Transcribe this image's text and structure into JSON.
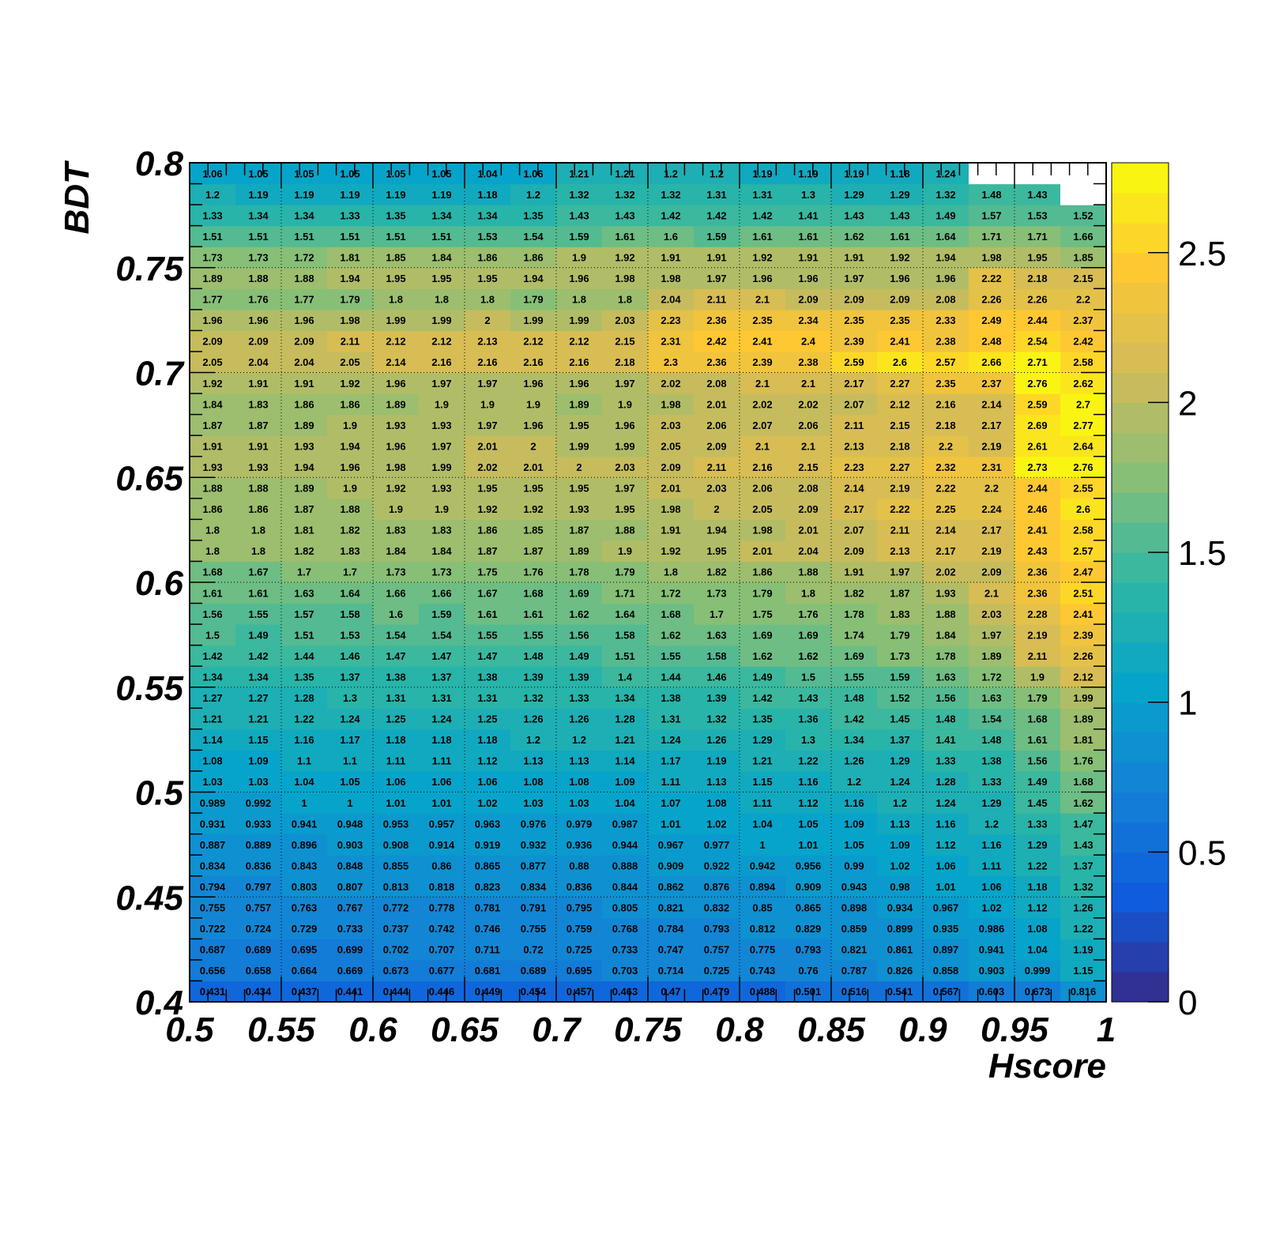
{
  "chart_data": {
    "type": "heatmap",
    "xlabel": "Hscore",
    "ylabel": "BDT",
    "xlim": [
      0.5,
      1.0
    ],
    "ylim": [
      0.4,
      0.8
    ],
    "zlim": [
      0,
      2.8
    ],
    "x_bins": 20,
    "y_bins": 40,
    "x_ticks": [
      "0.5",
      "0.55",
      "0.6",
      "0.65",
      "0.7",
      "0.75",
      "0.8",
      "0.85",
      "0.9",
      "0.95",
      "1"
    ],
    "y_ticks": [
      "0.4",
      "0.45",
      "0.5",
      "0.55",
      "0.6",
      "0.65",
      "0.7",
      "0.75",
      "0.8"
    ],
    "z_ticks": [
      "0",
      "0.5",
      "1",
      "1.5",
      "2",
      "2.5"
    ],
    "grid": true,
    "colorbar": "right",
    "palette": [
      "#352a87",
      "#0f5cdd",
      "#1481d6",
      "#06a4ca",
      "#2eb7a4",
      "#87bf77",
      "#d1bb59",
      "#fec832",
      "#f9fb0e"
    ],
    "empty_color": "#ffffff",
    "rows": [
      [
        "0.431",
        "0.434",
        "0.437",
        "0.441",
        "0.444",
        "0.446",
        "0.449",
        "0.454",
        "0.457",
        "0.463",
        "0.47",
        "0.479",
        "0.488",
        "0.501",
        "0.516",
        "0.541",
        "0.567",
        "0.603",
        "0.673",
        "0.816"
      ],
      [
        "0.656",
        "0.658",
        "0.664",
        "0.669",
        "0.673",
        "0.677",
        "0.681",
        "0.689",
        "0.695",
        "0.703",
        "0.714",
        "0.725",
        "0.743",
        "0.76",
        "0.787",
        "0.826",
        "0.858",
        "0.903",
        "0.999",
        "1.15"
      ],
      [
        "0.687",
        "0.689",
        "0.695",
        "0.699",
        "0.702",
        "0.707",
        "0.711",
        "0.72",
        "0.725",
        "0.733",
        "0.747",
        "0.757",
        "0.775",
        "0.793",
        "0.821",
        "0.861",
        "0.897",
        "0.941",
        "1.04",
        "1.19"
      ],
      [
        "0.722",
        "0.724",
        "0.729",
        "0.733",
        "0.737",
        "0.742",
        "0.746",
        "0.755",
        "0.759",
        "0.768",
        "0.784",
        "0.793",
        "0.812",
        "0.829",
        "0.859",
        "0.899",
        "0.935",
        "0.986",
        "1.08",
        "1.22"
      ],
      [
        "0.755",
        "0.757",
        "0.763",
        "0.767",
        "0.772",
        "0.778",
        "0.781",
        "0.791",
        "0.795",
        "0.805",
        "0.821",
        "0.832",
        "0.85",
        "0.865",
        "0.898",
        "0.934",
        "0.967",
        "1.02",
        "1.12",
        "1.26"
      ],
      [
        "0.794",
        "0.797",
        "0.803",
        "0.807",
        "0.813",
        "0.818",
        "0.823",
        "0.834",
        "0.836",
        "0.844",
        "0.862",
        "0.876",
        "0.894",
        "0.909",
        "0.943",
        "0.98",
        "1.01",
        "1.06",
        "1.18",
        "1.32"
      ],
      [
        "0.834",
        "0.836",
        "0.843",
        "0.848",
        "0.855",
        "0.86",
        "0.865",
        "0.877",
        "0.88",
        "0.888",
        "0.909",
        "0.922",
        "0.942",
        "0.956",
        "0.99",
        "1.02",
        "1.06",
        "1.11",
        "1.22",
        "1.37"
      ],
      [
        "0.887",
        "0.889",
        "0.896",
        "0.903",
        "0.908",
        "0.914",
        "0.919",
        "0.932",
        "0.936",
        "0.944",
        "0.967",
        "0.977",
        "1",
        "1.01",
        "1.05",
        "1.09",
        "1.12",
        "1.16",
        "1.29",
        "1.43"
      ],
      [
        "0.931",
        "0.933",
        "0.941",
        "0.948",
        "0.953",
        "0.957",
        "0.963",
        "0.976",
        "0.979",
        "0.987",
        "1.01",
        "1.02",
        "1.04",
        "1.05",
        "1.09",
        "1.13",
        "1.16",
        "1.2",
        "1.33",
        "1.47"
      ],
      [
        "0.989",
        "0.992",
        "1",
        "1",
        "1.01",
        "1.01",
        "1.02",
        "1.03",
        "1.03",
        "1.04",
        "1.07",
        "1.08",
        "1.11",
        "1.12",
        "1.16",
        "1.2",
        "1.24",
        "1.29",
        "1.45",
        "1.62"
      ],
      [
        "1.03",
        "1.03",
        "1.04",
        "1.05",
        "1.06",
        "1.06",
        "1.06",
        "1.08",
        "1.08",
        "1.09",
        "1.11",
        "1.13",
        "1.15",
        "1.16",
        "1.2",
        "1.24",
        "1.28",
        "1.33",
        "1.49",
        "1.68"
      ],
      [
        "1.08",
        "1.09",
        "1.1",
        "1.1",
        "1.11",
        "1.11",
        "1.12",
        "1.13",
        "1.13",
        "1.14",
        "1.17",
        "1.19",
        "1.21",
        "1.22",
        "1.26",
        "1.29",
        "1.33",
        "1.38",
        "1.56",
        "1.76"
      ],
      [
        "1.14",
        "1.15",
        "1.16",
        "1.17",
        "1.18",
        "1.18",
        "1.18",
        "1.2",
        "1.2",
        "1.21",
        "1.24",
        "1.26",
        "1.29",
        "1.3",
        "1.34",
        "1.37",
        "1.41",
        "1.48",
        "1.61",
        "1.81"
      ],
      [
        "1.21",
        "1.21",
        "1.22",
        "1.24",
        "1.25",
        "1.24",
        "1.25",
        "1.26",
        "1.26",
        "1.28",
        "1.31",
        "1.32",
        "1.35",
        "1.36",
        "1.42",
        "1.45",
        "1.48",
        "1.54",
        "1.68",
        "1.89"
      ],
      [
        "1.27",
        "1.27",
        "1.28",
        "1.3",
        "1.31",
        "1.31",
        "1.31",
        "1.32",
        "1.33",
        "1.34",
        "1.38",
        "1.39",
        "1.42",
        "1.43",
        "1.48",
        "1.52",
        "1.56",
        "1.63",
        "1.79",
        "1.99"
      ],
      [
        "1.34",
        "1.34",
        "1.35",
        "1.37",
        "1.38",
        "1.37",
        "1.38",
        "1.39",
        "1.39",
        "1.4",
        "1.44",
        "1.46",
        "1.49",
        "1.5",
        "1.55",
        "1.59",
        "1.63",
        "1.72",
        "1.9",
        "2.12"
      ],
      [
        "1.42",
        "1.42",
        "1.44",
        "1.46",
        "1.47",
        "1.47",
        "1.47",
        "1.48",
        "1.49",
        "1.51",
        "1.55",
        "1.58",
        "1.62",
        "1.62",
        "1.69",
        "1.73",
        "1.78",
        "1.89",
        "2.11",
        "2.26"
      ],
      [
        "1.5",
        "1.49",
        "1.51",
        "1.53",
        "1.54",
        "1.54",
        "1.55",
        "1.55",
        "1.56",
        "1.58",
        "1.62",
        "1.63",
        "1.69",
        "1.69",
        "1.74",
        "1.79",
        "1.84",
        "1.97",
        "2.19",
        "2.39"
      ],
      [
        "1.56",
        "1.55",
        "1.57",
        "1.58",
        "1.6",
        "1.59",
        "1.61",
        "1.61",
        "1.62",
        "1.64",
        "1.68",
        "1.7",
        "1.75",
        "1.76",
        "1.78",
        "1.83",
        "1.88",
        "2.03",
        "2.28",
        "2.41"
      ],
      [
        "1.61",
        "1.61",
        "1.63",
        "1.64",
        "1.66",
        "1.66",
        "1.67",
        "1.68",
        "1.69",
        "1.71",
        "1.72",
        "1.73",
        "1.79",
        "1.8",
        "1.82",
        "1.87",
        "1.93",
        "2.1",
        "2.36",
        "2.51"
      ],
      [
        "1.68",
        "1.67",
        "1.7",
        "1.7",
        "1.73",
        "1.73",
        "1.75",
        "1.76",
        "1.78",
        "1.79",
        "1.8",
        "1.82",
        "1.86",
        "1.88",
        "1.91",
        "1.97",
        "2.02",
        "2.09",
        "2.36",
        "2.47"
      ],
      [
        "1.8",
        "1.8",
        "1.82",
        "1.83",
        "1.84",
        "1.84",
        "1.87",
        "1.87",
        "1.89",
        "1.9",
        "1.92",
        "1.95",
        "2.01",
        "2.04",
        "2.09",
        "2.13",
        "2.17",
        "2.19",
        "2.43",
        "2.57"
      ],
      [
        "1.8",
        "1.8",
        "1.81",
        "1.82",
        "1.83",
        "1.83",
        "1.86",
        "1.85",
        "1.87",
        "1.88",
        "1.91",
        "1.94",
        "1.98",
        "2.01",
        "2.07",
        "2.11",
        "2.14",
        "2.17",
        "2.41",
        "2.58"
      ],
      [
        "1.86",
        "1.86",
        "1.87",
        "1.88",
        "1.9",
        "1.9",
        "1.92",
        "1.92",
        "1.93",
        "1.95",
        "1.98",
        "2",
        "2.05",
        "2.09",
        "2.17",
        "2.22",
        "2.25",
        "2.24",
        "2.46",
        "2.6"
      ],
      [
        "1.88",
        "1.88",
        "1.89",
        "1.9",
        "1.92",
        "1.93",
        "1.95",
        "1.95",
        "1.95",
        "1.97",
        "2.01",
        "2.03",
        "2.06",
        "2.08",
        "2.14",
        "2.19",
        "2.22",
        "2.2",
        "2.44",
        "2.55"
      ],
      [
        "1.93",
        "1.93",
        "1.94",
        "1.96",
        "1.98",
        "1.99",
        "2.02",
        "2.01",
        "2",
        "2.03",
        "2.09",
        "2.11",
        "2.16",
        "2.15",
        "2.23",
        "2.27",
        "2.32",
        "2.31",
        "2.73",
        "2.76"
      ],
      [
        "1.91",
        "1.91",
        "1.93",
        "1.94",
        "1.96",
        "1.97",
        "2.01",
        "2",
        "1.99",
        "1.99",
        "2.05",
        "2.09",
        "2.1",
        "2.1",
        "2.13",
        "2.18",
        "2.2",
        "2.19",
        "2.61",
        "2.64"
      ],
      [
        "1.87",
        "1.87",
        "1.89",
        "1.9",
        "1.93",
        "1.93",
        "1.97",
        "1.96",
        "1.95",
        "1.96",
        "2.03",
        "2.06",
        "2.07",
        "2.06",
        "2.11",
        "2.15",
        "2.18",
        "2.17",
        "2.69",
        "2.77"
      ],
      [
        "1.84",
        "1.83",
        "1.86",
        "1.86",
        "1.89",
        "1.9",
        "1.9",
        "1.9",
        "1.89",
        "1.9",
        "1.98",
        "2.01",
        "2.02",
        "2.02",
        "2.07",
        "2.12",
        "2.16",
        "2.14",
        "2.59",
        "2.7"
      ],
      [
        "1.92",
        "1.91",
        "1.91",
        "1.92",
        "1.96",
        "1.97",
        "1.97",
        "1.96",
        "1.96",
        "1.97",
        "2.02",
        "2.08",
        "2.1",
        "2.1",
        "2.17",
        "2.27",
        "2.35",
        "2.37",
        "2.76",
        "2.62"
      ],
      [
        "2.05",
        "2.04",
        "2.04",
        "2.05",
        "2.14",
        "2.16",
        "2.16",
        "2.16",
        "2.16",
        "2.18",
        "2.3",
        "2.36",
        "2.39",
        "2.38",
        "2.59",
        "2.6",
        "2.57",
        "2.66",
        "2.71",
        "2.58"
      ],
      [
        "2.09",
        "2.09",
        "2.09",
        "2.11",
        "2.12",
        "2.12",
        "2.13",
        "2.12",
        "2.12",
        "2.15",
        "2.31",
        "2.42",
        "2.41",
        "2.4",
        "2.39",
        "2.41",
        "2.38",
        "2.48",
        "2.54",
        "2.42"
      ],
      [
        "1.96",
        "1.96",
        "1.96",
        "1.98",
        "1.99",
        "1.99",
        "2",
        "1.99",
        "1.99",
        "2.03",
        "2.23",
        "2.36",
        "2.35",
        "2.34",
        "2.35",
        "2.35",
        "2.33",
        "2.49",
        "2.44",
        "2.37"
      ],
      [
        "1.77",
        "1.76",
        "1.77",
        "1.79",
        "1.8",
        "1.8",
        "1.8",
        "1.79",
        "1.8",
        "1.8",
        "2.04",
        "2.11",
        "2.1",
        "2.09",
        "2.09",
        "2.09",
        "2.08",
        "2.26",
        "2.26",
        "2.2"
      ],
      [
        "1.89",
        "1.88",
        "1.88",
        "1.94",
        "1.95",
        "1.95",
        "1.95",
        "1.94",
        "1.96",
        "1.98",
        "1.98",
        "1.97",
        "1.96",
        "1.96",
        "1.97",
        "1.96",
        "1.96",
        "2.22",
        "2.18",
        "2.15"
      ],
      [
        "1.73",
        "1.73",
        "1.72",
        "1.81",
        "1.85",
        "1.84",
        "1.86",
        "1.86",
        "1.9",
        "1.92",
        "1.91",
        "1.91",
        "1.92",
        "1.91",
        "1.91",
        "1.92",
        "1.94",
        "1.98",
        "1.95",
        "1.85"
      ],
      [
        "1.51",
        "1.51",
        "1.51",
        "1.51",
        "1.51",
        "1.51",
        "1.53",
        "1.54",
        "1.59",
        "1.61",
        "1.6",
        "1.59",
        "1.61",
        "1.61",
        "1.62",
        "1.61",
        "1.64",
        "1.71",
        "1.71",
        "1.66"
      ],
      [
        "1.33",
        "1.34",
        "1.34",
        "1.33",
        "1.35",
        "1.34",
        "1.34",
        "1.35",
        "1.43",
        "1.43",
        "1.42",
        "1.42",
        "1.42",
        "1.41",
        "1.43",
        "1.43",
        "1.49",
        "1.57",
        "1.53",
        "1.52"
      ],
      [
        "1.2",
        "1.19",
        "1.19",
        "1.19",
        "1.19",
        "1.19",
        "1.18",
        "1.2",
        "1.32",
        "1.32",
        "1.32",
        "1.31",
        "1.31",
        "1.3",
        "1.29",
        "1.29",
        "1.32",
        "1.48",
        "1.43",
        ""
      ],
      [
        "1.06",
        "1.05",
        "1.05",
        "1.05",
        "1.05",
        "1.05",
        "1.04",
        "1.06",
        "1.21",
        "1.21",
        "1.2",
        "1.2",
        "1.19",
        "1.19",
        "1.19",
        "1.18",
        "1.24",
        "",
        "",
        ""
      ]
    ]
  }
}
